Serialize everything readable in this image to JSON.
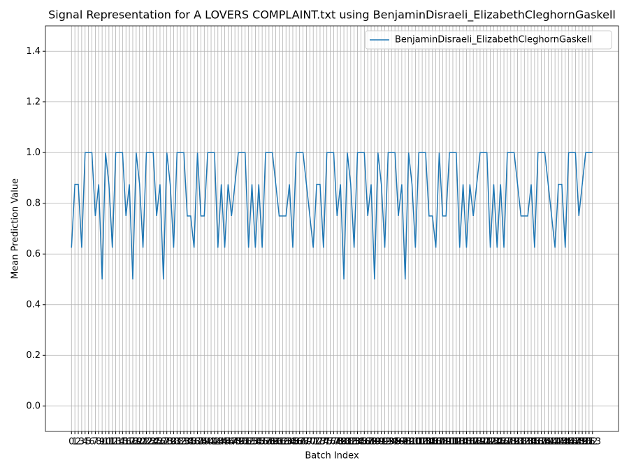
{
  "chart_data": {
    "type": "line",
    "title": "Signal Representation for A LOVERS COMPLAINT.txt using BenjaminDisraeli_ElizabethCleghornGaskell",
    "xlabel": "Batch Index",
    "ylabel": "Mean Prediction Value",
    "x": [
      0,
      1,
      2,
      3,
      4,
      5,
      6,
      7,
      8,
      9,
      10,
      11,
      12,
      13,
      14,
      15,
      16,
      17,
      18,
      19,
      20,
      21,
      22,
      23,
      24,
      25,
      26,
      27,
      28,
      29,
      30,
      31,
      32,
      33,
      34,
      35,
      36,
      37,
      38,
      39,
      40,
      41,
      42,
      43,
      44,
      45,
      46,
      47,
      48,
      49,
      50,
      51,
      52,
      53,
      54,
      55,
      56,
      57,
      58,
      59,
      60,
      61,
      62,
      63,
      64,
      65,
      66,
      67,
      68,
      69,
      70,
      71,
      72,
      73,
      74,
      75,
      76,
      77,
      78,
      79,
      80,
      81,
      82,
      83,
      84,
      85,
      86,
      87,
      88,
      89,
      90,
      91,
      92,
      93,
      94,
      95,
      96,
      97,
      98,
      99,
      100,
      101,
      102,
      103,
      104,
      105,
      106,
      107,
      108,
      109,
      110,
      111,
      112,
      113,
      114,
      115,
      116,
      117,
      118,
      119,
      120,
      121,
      122,
      123,
      124,
      125,
      126,
      127,
      128,
      129,
      130,
      131,
      132,
      133,
      134,
      135,
      136,
      137,
      138,
      139,
      140,
      141,
      142,
      143,
      144,
      145,
      146,
      147,
      148,
      149,
      150,
      151,
      152,
      153
    ],
    "series": [
      {
        "name": "BenjaminDisraeli_ElizabethCleghornGaskell",
        "color": "#1f77b4",
        "values": [
          0.625,
          0.875,
          0.875,
          0.625,
          1,
          1,
          1,
          0.75,
          0.875,
          0.5,
          1,
          0.875,
          0.625,
          1,
          1,
          1,
          0.75,
          0.875,
          0.5,
          1,
          0.875,
          0.625,
          1,
          1,
          1,
          0.75,
          0.875,
          0.5,
          1,
          0.875,
          0.625,
          1,
          1,
          1,
          0.75,
          0.75,
          0.625,
          1,
          0.75,
          0.75,
          1,
          1,
          1,
          0.625,
          0.875,
          0.625,
          0.875,
          0.75,
          0.875,
          1,
          1,
          1,
          0.625,
          0.875,
          0.625,
          0.875,
          0.625,
          1,
          1,
          1,
          0.875,
          0.75,
          0.75,
          0.75,
          0.875,
          0.625,
          1,
          1,
          1,
          0.875,
          0.75,
          0.625,
          0.875,
          0.875,
          0.625,
          1,
          1,
          1,
          0.75,
          0.875,
          0.5,
          1,
          0.875,
          0.625,
          1,
          1,
          1,
          0.75,
          0.875,
          0.5,
          1,
          0.875,
          0.625,
          1,
          1,
          1,
          0.75,
          0.875,
          0.5,
          1,
          0.875,
          0.625,
          1,
          1,
          1,
          0.75,
          0.75,
          0.625,
          1,
          0.75,
          0.75,
          1,
          1,
          1,
          0.625,
          0.875,
          0.625,
          0.875,
          0.75,
          0.875,
          1,
          1,
          1,
          0.625,
          0.875,
          0.625,
          0.875,
          0.625,
          1,
          1,
          1,
          0.875,
          0.75,
          0.75,
          0.75,
          0.875,
          0.625,
          1,
          1,
          1,
          0.875,
          0.75,
          0.625,
          0.875,
          0.875,
          0.625,
          1,
          1,
          1,
          0.75,
          0.875,
          1,
          1,
          1
        ]
      }
    ],
    "xlim": [
      -7.65,
      160.65
    ],
    "xticks": [
      0,
      1,
      2,
      3,
      4,
      5,
      6,
      7,
      8,
      9,
      10,
      11,
      12,
      13,
      14,
      15,
      16,
      17,
      18,
      19,
      20,
      21,
      22,
      23,
      24,
      25,
      26,
      27,
      28,
      29,
      30,
      31,
      32,
      33,
      34,
      35,
      36,
      37,
      38,
      39,
      40,
      41,
      42,
      43,
      44,
      45,
      46,
      47,
      48,
      49,
      50,
      51,
      52,
      53,
      54,
      55,
      56,
      57,
      58,
      59,
      60,
      61,
      62,
      63,
      64,
      65,
      66,
      67,
      68,
      69,
      70,
      71,
      72,
      73,
      74,
      75,
      76,
      77,
      78,
      79,
      80,
      81,
      82,
      83,
      84,
      85,
      86,
      87,
      88,
      89,
      90,
      91,
      92,
      93,
      94,
      95,
      96,
      97,
      98,
      99,
      100,
      101,
      102,
      103,
      104,
      105,
      106,
      107,
      108,
      109,
      110,
      111,
      112,
      113,
      114,
      115,
      116,
      117,
      118,
      119,
      120,
      121,
      122,
      123,
      124,
      125,
      126,
      127,
      128,
      129,
      130,
      131,
      132,
      133,
      134,
      135,
      136,
      137,
      138,
      139,
      140,
      141,
      142,
      143,
      144,
      145,
      146,
      147,
      148,
      149,
      150,
      151,
      152,
      153
    ],
    "ylim": [
      -0.1,
      1.5
    ],
    "yticks": [
      {
        "value": 0,
        "label": "0.0"
      },
      {
        "value": 0.2,
        "label": "0.2"
      },
      {
        "value": 0.4,
        "label": "0.4"
      },
      {
        "value": 0.6,
        "label": "0.6"
      },
      {
        "value": 0.8,
        "label": "0.8"
      },
      {
        "value": 1,
        "label": "1.0"
      },
      {
        "value": 1.2,
        "label": "1.2"
      },
      {
        "value": 1.4,
        "label": "1.4"
      }
    ],
    "grid": true,
    "legend": "upper right"
  }
}
